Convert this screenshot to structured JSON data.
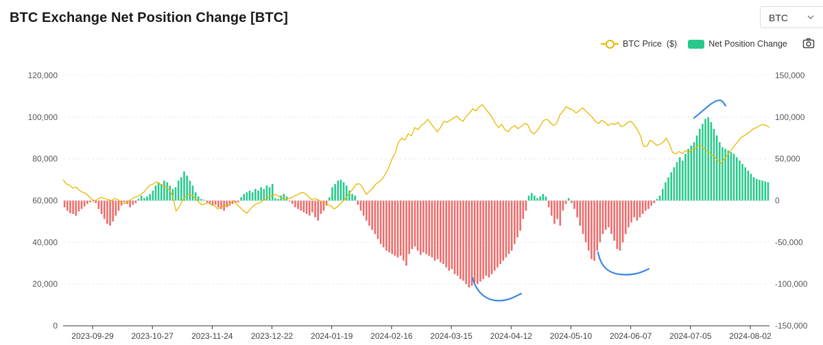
{
  "title": "BTC Exchange Net Position Change [BTC]",
  "asset_selector": {
    "value": "BTC"
  },
  "legend": {
    "price_label": "BTC Price  ($)",
    "net_label": "Net Position Change"
  },
  "colors": {
    "price": "#e6b800",
    "positive": "#26c98b",
    "negative": "#ee6b6b",
    "annotation": "#3a86e6"
  },
  "icons": {
    "camera": "camera-icon",
    "dropdown": "chevron-down-icon"
  },
  "chart_data": {
    "type": "bar",
    "title": "BTC Exchange Net Position Change [BTC]",
    "x_tick_labels": [
      "2023-09-29",
      "2023-10-27",
      "2023-11-24",
      "2023-12-22",
      "2024-01-19",
      "2024-02-16",
      "2024-03-15",
      "2024-04-12",
      "2024-05-10",
      "2024-06-07",
      "2024-07-05",
      "2024-08-02"
    ],
    "left_axis": {
      "name": "BTC Price ($)",
      "ylim": [
        0,
        120000
      ],
      "ticks": [
        0,
        20000,
        40000,
        60000,
        80000,
        100000,
        120000
      ],
      "tick_labels": [
        "0",
        "20,000",
        "40,000",
        "60,000",
        "80,000",
        "100,000",
        "120,000"
      ]
    },
    "right_axis": {
      "name": "Net Position Change",
      "ylim": [
        -150000,
        150000
      ],
      "ticks": [
        -150000,
        -100000,
        -50000,
        0,
        50000,
        100000,
        150000
      ],
      "tick_labels": [
        "-150,000",
        "-100,000",
        "-50,000",
        "0",
        "50,000",
        "100,000",
        "150,000"
      ]
    },
    "grid": true,
    "legend_position": "top-right",
    "series": [
      {
        "name": "Net Position Change",
        "type": "bar",
        "axis": "right",
        "values": [
          -8000,
          -12000,
          -15000,
          -16000,
          -18000,
          -13000,
          -10000,
          -7000,
          -4000,
          -2000,
          -1000,
          -3000,
          -10000,
          -16000,
          -22000,
          -28000,
          -30000,
          -25000,
          -18000,
          -12000,
          -6000,
          -2000,
          -4000,
          -8000,
          -5000,
          -3000,
          2000,
          6000,
          3000,
          5000,
          8000,
          12000,
          18000,
          22000,
          20000,
          24000,
          22000,
          18000,
          14000,
          16000,
          24000,
          28000,
          35000,
          30000,
          24000,
          18000,
          10000,
          5000,
          2000,
          1000,
          -2000,
          -4000,
          -6000,
          -5000,
          -8000,
          -10000,
          -12000,
          -8000,
          -6000,
          -4000,
          -3000,
          -2000,
          4000,
          8000,
          10000,
          12000,
          10000,
          14000,
          12000,
          16000,
          14000,
          18000,
          16000,
          20000,
          3000,
          2000,
          6000,
          8000,
          5000,
          -1000,
          -4000,
          -8000,
          -10000,
          -12000,
          -14000,
          -16000,
          -18000,
          -14000,
          -20000,
          -24000,
          -16000,
          -12000,
          -6000,
          4000,
          16000,
          20000,
          24000,
          25000,
          22000,
          18000,
          12000,
          8000,
          6000,
          -5000,
          -12000,
          -18000,
          -24000,
          -30000,
          -35000,
          -40000,
          -46000,
          -52000,
          -56000,
          -60000,
          -62000,
          -64000,
          -66000,
          -68000,
          -66000,
          -72000,
          -78000,
          -64000,
          -58000,
          -55000,
          -60000,
          -65000,
          -62000,
          -64000,
          -66000,
          -68000,
          -72000,
          -70000,
          -74000,
          -76000,
          -80000,
          -84000,
          -82000,
          -88000,
          -90000,
          -94000,
          -96000,
          -100000,
          -104000,
          -102000,
          -98000,
          -100000,
          -97000,
          -94000,
          -90000,
          -92000,
          -88000,
          -84000,
          -80000,
          -76000,
          -72000,
          -68000,
          -64000,
          -60000,
          -52000,
          -44000,
          -36000,
          -22000,
          -12000,
          6000,
          9000,
          6000,
          3000,
          5000,
          8000,
          5000,
          -8000,
          -18000,
          -28000,
          -22000,
          -30000,
          -12000,
          -4000,
          3000,
          -3000,
          -10000,
          -20000,
          -30000,
          -40000,
          -50000,
          -60000,
          -70000,
          -72000,
          -60000,
          -50000,
          -40000,
          -35000,
          -32000,
          -40000,
          -48000,
          -58000,
          -60000,
          -50000,
          -40000,
          -32000,
          -26000,
          -20000,
          -24000,
          -20000,
          -16000,
          -12000,
          -10000,
          -6000,
          -3000,
          2000,
          6000,
          14000,
          22000,
          28000,
          34000,
          40000,
          46000,
          52000,
          48000,
          56000,
          62000,
          66000,
          70000,
          78000,
          86000,
          92000,
          98000,
          100000,
          94000,
          86000,
          78000,
          70000,
          64000,
          62000,
          60000,
          58000,
          56000,
          52000,
          48000,
          44000,
          40000,
          36000,
          32000,
          28000,
          26000,
          25000,
          24000,
          23000,
          22000
        ]
      },
      {
        "name": "BTC Price ($)",
        "type": "line",
        "axis": "left",
        "values": [
          70000,
          68000,
          67500,
          66000,
          66500,
          65000,
          64000,
          63500,
          62000,
          60500,
          60000,
          61000,
          61500,
          61000,
          60500,
          60000,
          61000,
          60500,
          59000,
          58500,
          59500,
          60500,
          61500,
          62000,
          63000,
          64000,
          66000,
          67500,
          68000,
          69000,
          68000,
          67000,
          66500,
          65000,
          62000,
          55000,
          57000,
          60000,
          62000,
          63000,
          62500,
          61000,
          59500,
          58000,
          58500,
          59000,
          58000,
          57500,
          56000,
          57000,
          58000,
          57500,
          59000,
          60000,
          58000,
          56500,
          55000,
          54000,
          56000,
          57500,
          58500,
          59000,
          60000,
          61000,
          62000,
          62500,
          63000,
          62000,
          61000,
          60500,
          61000,
          61500,
          62500,
          63000,
          64000,
          63500,
          62000,
          60500,
          61000,
          60500,
          59500,
          59000,
          58000,
          57500,
          56000,
          57000,
          58500,
          60000,
          62000,
          64000,
          66000,
          68000,
          68000,
          66000,
          63000,
          64500,
          66000,
          68000,
          69000,
          70500,
          73000,
          76000,
          80000,
          83000,
          88000,
          90000,
          89000,
          92000,
          91000,
          95000,
          94000,
          96000,
          97000,
          99000,
          97000,
          95000,
          93000,
          95000,
          98000,
          97500,
          98500,
          99500,
          100500,
          99000,
          98000,
          100500,
          102000,
          104000,
          103000,
          105000,
          106000,
          104000,
          102000,
          100000,
          97000,
          95000,
          96500,
          94000,
          93000,
          95000,
          96000,
          94500,
          95500,
          97000,
          96500,
          93000,
          92000,
          93500,
          96000,
          98500,
          99000,
          97500,
          96000,
          97000,
          101000,
          103000,
          105000,
          104000,
          103500,
          102000,
          103000,
          104500,
          103000,
          101500,
          100000,
          98000,
          97000,
          98500,
          97500,
          96000,
          97000,
          96500,
          97500,
          95500,
          96000,
          97500,
          98000,
          96500,
          94000,
          91000,
          86000,
          86000,
          89000,
          88000,
          86500,
          87000,
          88000,
          90000,
          87000,
          83000,
          82500,
          83500,
          82500,
          84000,
          83000,
          84500,
          85000,
          86500,
          86000,
          84500,
          83500,
          82000,
          81000,
          79000,
          78000,
          80000,
          82000,
          84000,
          86000,
          88000,
          90000,
          91000,
          92000,
          93000,
          94500,
          95000,
          96000,
          96500,
          96000,
          95000
        ]
      }
    ],
    "annotations": [
      {
        "type": "hand-drawn-arc",
        "color": "#3a86e6",
        "at": "2024-07-05 to 2024-08-02",
        "value": 105000,
        "axis": "left"
      },
      {
        "type": "hand-drawn-arc",
        "color": "#3a86e6",
        "at": "2024-03-15 to 2024-04-12",
        "value": -115000,
        "axis": "right"
      },
      {
        "type": "hand-drawn-arc",
        "color": "#3a86e6",
        "at": "2024-05-10 to 2024-06-07",
        "value": -85000,
        "axis": "right"
      }
    ]
  }
}
